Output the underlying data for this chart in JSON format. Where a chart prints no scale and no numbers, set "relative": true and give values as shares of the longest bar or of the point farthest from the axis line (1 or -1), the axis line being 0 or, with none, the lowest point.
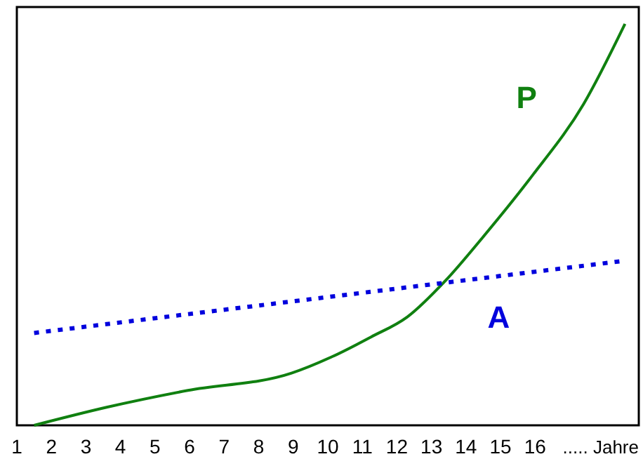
{
  "chart_data": {
    "type": "line",
    "relative": true,
    "xlabel": "..... Jahre",
    "xlim": [
      1,
      19
    ],
    "xticks": [
      1,
      2,
      3,
      4,
      5,
      6,
      7,
      8,
      9,
      10,
      11,
      12,
      13,
      14,
      15,
      16
    ],
    "series": [
      {
        "name": "P",
        "color": "#108010",
        "line_style": "solid",
        "x": [
          1.5,
          3.6,
          5.95,
          8.95,
          10.1,
          11.25,
          12.3,
          13.4,
          14.5,
          15.9,
          17.4,
          18.6
        ],
        "values": [
          0.0,
          0.045,
          0.087,
          0.13,
          0.17,
          0.22,
          0.27,
          0.36,
          0.47,
          0.62,
          0.8,
          1.0
        ]
      },
      {
        "name": "A",
        "color": "#0000dd",
        "line_style": "dotted",
        "x": [
          1.5,
          18.6
        ],
        "values": [
          0.23,
          0.41
        ]
      }
    ],
    "grid": false,
    "marker": "none"
  }
}
